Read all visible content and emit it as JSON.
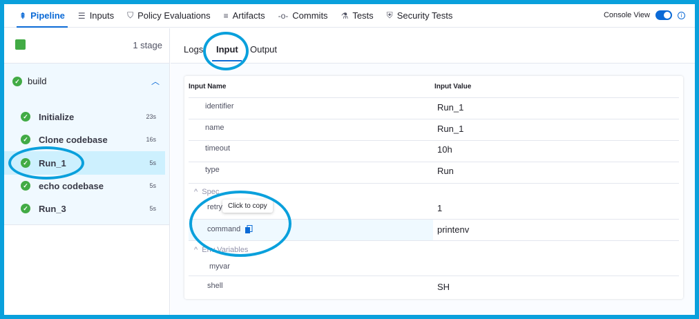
{
  "nav": {
    "tabs": [
      {
        "label": "Pipeline",
        "icon": "pipeline-icon"
      },
      {
        "label": "Inputs",
        "icon": "inputs-icon"
      },
      {
        "label": "Policy Evaluations",
        "icon": "shield-check-icon"
      },
      {
        "label": "Artifacts",
        "icon": "artifacts-icon"
      },
      {
        "label": "Commits",
        "icon": "commit-icon"
      },
      {
        "label": "Tests",
        "icon": "flask-icon"
      },
      {
        "label": "Security Tests",
        "icon": "security-icon"
      }
    ],
    "console_view": "Console View",
    "console_view_on": true
  },
  "sidebar": {
    "stage_count": "1 stage",
    "stage": "build",
    "steps": [
      {
        "name": "Initialize",
        "duration": "23s"
      },
      {
        "name": "Clone codebase",
        "duration": "16s"
      },
      {
        "name": "Run_1",
        "duration": "5s"
      },
      {
        "name": "echo codebase",
        "duration": "5s"
      },
      {
        "name": "Run_3",
        "duration": "5s"
      }
    ]
  },
  "main": {
    "tabs": [
      "Logs",
      "Input",
      "Output"
    ],
    "active_tab": "Input",
    "table": {
      "col_name": "Input Name",
      "col_value": "Input Value",
      "rows": [
        {
          "k": "identifier",
          "v": "Run_1"
        },
        {
          "k": "name",
          "v": "Run_1"
        },
        {
          "k": "timeout",
          "v": "10h"
        },
        {
          "k": "type",
          "v": "Run"
        }
      ],
      "spec_label": "Spec",
      "spec_rows": [
        {
          "k": "retry",
          "v": "1"
        },
        {
          "k": "command",
          "v": "printenv"
        }
      ],
      "env_label": "Env Variables",
      "env_rows": [
        {
          "k": "myvar",
          "v": ""
        }
      ],
      "shell": {
        "k": "shell",
        "v": "SH"
      }
    },
    "tooltip": "Click to copy"
  },
  "colors": {
    "accent": "#0b6ad6",
    "success": "#42ab45",
    "annotation": "#0aa0dc"
  }
}
